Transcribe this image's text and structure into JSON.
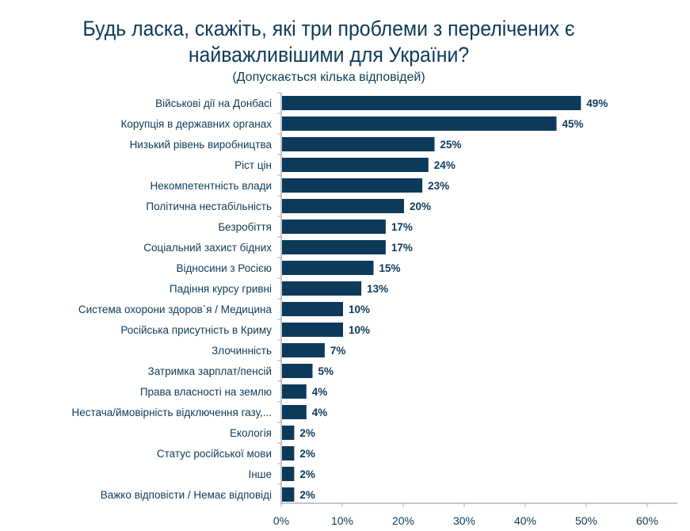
{
  "chart_data": {
    "type": "bar",
    "orientation": "horizontal",
    "title": "Будь ласка, скажіть, які три проблеми з перелічених є найважливішими для України?",
    "subtitle": "(Допускається кілька відповідей)",
    "categories": [
      "Військові дії на Донбасі",
      "Корупція в державних органах",
      "Низький рівень виробництва",
      "Ріст цін",
      "Некомпетентність влади",
      "Політична нестабільність",
      "Безробіття",
      "Соціальний захист бідних",
      "Відносини з Росією",
      "Падіння курсу гривні",
      "Система охорони здоров`я / Медицина",
      "Російська присутність в Криму",
      "Злочинність",
      "Затримка зарплат/пенсій",
      "Права власності на землю",
      "Нестача/ймовірність відключення газу,...",
      "Екологія",
      "Статус російської мови",
      "Інше",
      "Важко відповісти / Немає відповіді"
    ],
    "values": [
      49,
      45,
      25,
      24,
      23,
      20,
      17,
      17,
      15,
      13,
      10,
      10,
      7,
      5,
      4,
      4,
      2,
      2,
      2,
      2
    ],
    "data_labels": [
      "49%",
      "45%",
      "25%",
      "24%",
      "23%",
      "20%",
      "17%",
      "17%",
      "15%",
      "13%",
      "10%",
      "10%",
      "7%",
      "5%",
      "4%",
      "4%",
      "2%",
      "2%",
      "2%",
      "2%"
    ],
    "xlim": [
      0,
      60
    ],
    "xticks": [
      "0%",
      "10%",
      "20%",
      "30%",
      "40%",
      "50%",
      "60%"
    ],
    "grid": false,
    "bar_color": "#0d3a5a"
  }
}
